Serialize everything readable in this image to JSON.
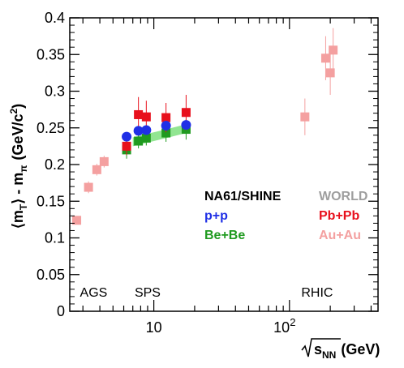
{
  "chart_data": {
    "type": "scatter",
    "xscale": "log",
    "xlim": [
      2.4,
      450
    ],
    "ylim": [
      0,
      0.4
    ],
    "grid": false,
    "xlabel_parts": {
      "root": "s",
      "sub": "NN",
      "unit": "(GeV)"
    },
    "ylabel_parts": {
      "lhs": "⟨m",
      "sub1": "T",
      "mid": "⟩ - m",
      "sub2": "π",
      "units": "(GeV/c",
      "sup": "2",
      "close": ")"
    },
    "y_ticks": [
      "0",
      "0.05",
      "0.1",
      "0.15",
      "0.2",
      "0.25",
      "0.3",
      "0.35",
      "0.4"
    ],
    "y_tick_values": [
      0,
      0.05,
      0.1,
      0.15,
      0.2,
      0.25,
      0.3,
      0.35,
      0.4
    ],
    "x_tick_labels": [
      {
        "value": 10,
        "base": "10",
        "exp": ""
      },
      {
        "value": 100,
        "base": "10",
        "exp": "2"
      }
    ],
    "regions": [
      {
        "label": "AGS",
        "x": 3.6
      },
      {
        "label": "SPS",
        "x": 9.0
      },
      {
        "label": "RHIC",
        "x": 160
      }
    ],
    "legend": {
      "placement": "center-right",
      "group1": [
        "NA61/SHINE",
        "p+p",
        "Be+Be"
      ],
      "group2": [
        "WORLD",
        "Pb+Pb",
        "Au+Au"
      ]
    },
    "colors": {
      "na61": "#000000",
      "pp": "#1f2fe6",
      "bebe": "#1f9a1f",
      "world": "#9e9e9e",
      "pbpb": "#e8101c",
      "auau": "#f4a0a0",
      "band": "#7ee07e"
    },
    "series": [
      {
        "name": "p+p",
        "marker": "circle",
        "points": [
          {
            "x": 6.3,
            "y": 0.238,
            "err": 0.004
          },
          {
            "x": 7.7,
            "y": 0.246,
            "err": 0.004
          },
          {
            "x": 8.8,
            "y": 0.247,
            "err": 0.004
          },
          {
            "x": 12.3,
            "y": 0.253,
            "err": 0.004
          },
          {
            "x": 17.3,
            "y": 0.254,
            "err": 0.004
          }
        ]
      },
      {
        "name": "Be+Be",
        "marker": "square",
        "points": [
          {
            "x": 6.3,
            "y": 0.22,
            "err": 0.012
          },
          {
            "x": 7.7,
            "y": 0.232,
            "err": 0.01
          },
          {
            "x": 8.8,
            "y": 0.236,
            "err": 0.01
          },
          {
            "x": 12.3,
            "y": 0.243,
            "err": 0.012
          },
          {
            "x": 17.3,
            "y": 0.248,
            "err": 0.014
          }
        ]
      },
      {
        "name": "Pb+Pb",
        "marker": "square",
        "points": [
          {
            "x": 6.3,
            "y": 0.225,
            "err": 0.012
          },
          {
            "x": 7.7,
            "y": 0.268,
            "err": 0.024
          },
          {
            "x": 8.8,
            "y": 0.265,
            "err": 0.022
          },
          {
            "x": 12.3,
            "y": 0.264,
            "err": 0.02
          },
          {
            "x": 17.3,
            "y": 0.271,
            "err": 0.024
          }
        ]
      },
      {
        "name": "Au+Au",
        "marker": "square",
        "points": [
          {
            "x": 2.7,
            "y": 0.124,
            "err": 0.004
          },
          {
            "x": 3.3,
            "y": 0.169,
            "err": 0.008
          },
          {
            "x": 3.8,
            "y": 0.193,
            "err": 0.008
          },
          {
            "x": 4.3,
            "y": 0.204,
            "err": 0.008
          },
          {
            "x": 130,
            "y": 0.265,
            "err": 0.025
          },
          {
            "x": 185,
            "y": 0.345,
            "err": 0.03
          },
          {
            "x": 200,
            "y": 0.325,
            "err": 0.03
          },
          {
            "x": 210,
            "y": 0.356,
            "err": 0.03
          }
        ]
      }
    ],
    "band_points": [
      {
        "x": 7.0,
        "y": 0.231
      },
      {
        "x": 9.0,
        "y": 0.236
      },
      {
        "x": 12.3,
        "y": 0.242
      },
      {
        "x": 17.3,
        "y": 0.249
      }
    ]
  }
}
